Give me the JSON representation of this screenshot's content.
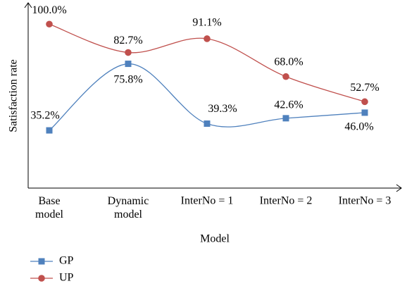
{
  "chart_data": {
    "type": "line",
    "x_label": "Model",
    "y_label": "Satisfaction rate",
    "categories": [
      "Base model",
      "Dynamic model",
      "InterNo = 1",
      "InterNo = 2",
      "InterNo = 3"
    ],
    "ylim": [
      0,
      113
    ],
    "series": [
      {
        "name": "GP",
        "color": "#4f81bd",
        "marker": "square",
        "values": [
          35.2,
          75.8,
          39.3,
          42.6,
          46.0
        ],
        "value_labels": [
          "35.2%",
          "75.8%",
          "39.3%",
          "42.6%",
          "46.0%"
        ]
      },
      {
        "name": "UP",
        "color": "#c0504d",
        "marker": "circle",
        "values": [
          100.0,
          82.7,
          91.1,
          68.0,
          52.7
        ],
        "value_labels": [
          "100.0%",
          "82.7%",
          "91.1%",
          "68.0%",
          "52.7%"
        ]
      }
    ]
  }
}
